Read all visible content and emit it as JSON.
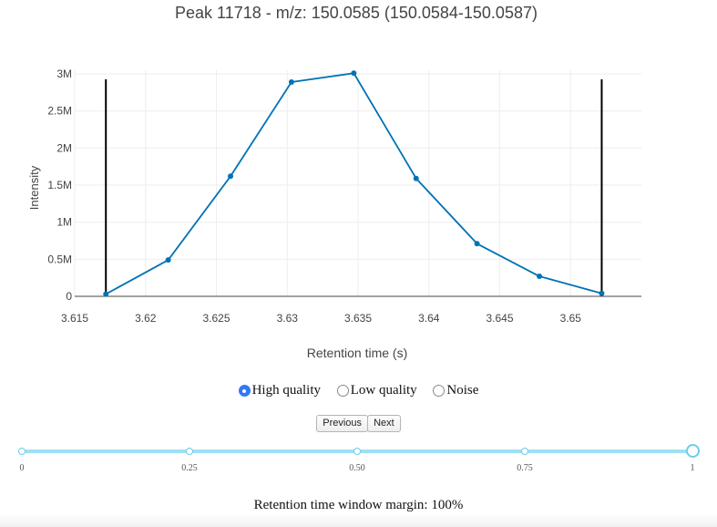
{
  "chart_data": {
    "type": "line",
    "title": "Peak 11718 - m/z: 150.0585 (150.0584-150.0587)",
    "xlabel": "Retention time (s)",
    "ylabel": "Intensity",
    "xlim": [
      3.615,
      3.655
    ],
    "ylim": [
      0,
      3050000
    ],
    "x_ticks": [
      3.615,
      3.62,
      3.625,
      3.63,
      3.635,
      3.64,
      3.645,
      3.65
    ],
    "x_tick_labels": [
      "3.615",
      "3.62",
      "3.625",
      "3.63",
      "3.635",
      "3.64",
      "3.645",
      "3.65"
    ],
    "y_ticks": [
      0,
      500000,
      1000000,
      1500000,
      2000000,
      2500000,
      3000000
    ],
    "y_tick_labels": [
      "0",
      "0.5M",
      "1M",
      "1.5M",
      "2M",
      "2.5M",
      "3M"
    ],
    "grid": true,
    "series": [
      {
        "color": "#0072b5",
        "x": [
          3.6172,
          3.6216,
          3.626,
          3.6303,
          3.6347,
          3.6391,
          3.6434,
          3.6478,
          3.6522
        ],
        "y": [
          30000,
          490000,
          1620000,
          2890000,
          3010000,
          1590000,
          710000,
          270000,
          40000
        ]
      }
    ],
    "boundaries": {
      "color": "#000000",
      "x": [
        3.6172,
        3.6522
      ]
    }
  },
  "classification": {
    "options": [
      {
        "label": "High quality",
        "checked": true
      },
      {
        "label": "Low quality",
        "checked": false
      },
      {
        "label": "Noise",
        "checked": false
      }
    ]
  },
  "navigation": {
    "previous_label": "Previous",
    "next_label": "Next"
  },
  "slider": {
    "value": 1,
    "marks": [
      0,
      0.25,
      0.5,
      0.75,
      1
    ],
    "labels": [
      "0",
      "0.25",
      "0.50",
      "0.75",
      "1"
    ]
  },
  "margin_text": "Retention time window margin: 100%",
  "colors": {
    "series": "#0072b5",
    "slider_track": "#9fe0f5",
    "radio_checked": "#3478f6"
  }
}
